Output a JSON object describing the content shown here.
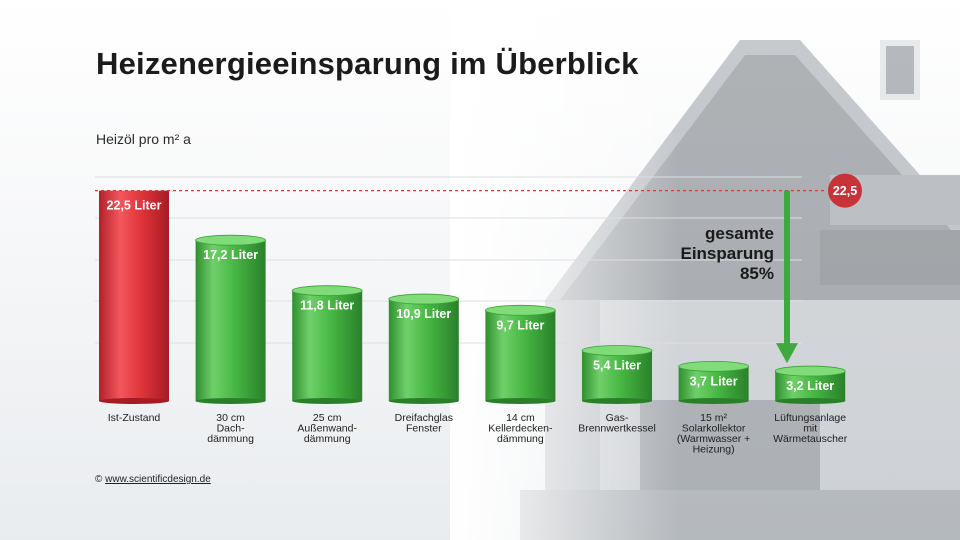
{
  "title": "Heizenergieeinsparung im Überblick",
  "unit_label": "Heizöl pro m² a",
  "savings_label": [
    "gesamte",
    "Einsparung",
    "85%"
  ],
  "copyright": {
    "symbol": "©",
    "link_text": "www.scientificdesign.de"
  },
  "colors": {
    "baseline": "#e0353b",
    "measures": "#3fae3f",
    "reference_line": "#d93a3a",
    "arrow": "#3fa83f"
  },
  "chart_data": {
    "type": "bar",
    "title": "Heizenergieeinsparung im Überblick",
    "ylabel": "Heizöl pro m² a",
    "xlabel": "",
    "ylim": [
      0,
      25
    ],
    "grid": true,
    "categories": [
      [
        "Ist-Zustand"
      ],
      [
        "30 cm",
        "Dach-",
        "dämmung"
      ],
      [
        "25 cm",
        "Außenwand-",
        "dämmung"
      ],
      [
        "Dreifachglas",
        "Fenster"
      ],
      [
        "14 cm",
        "Kellerdecken-",
        "dämmung"
      ],
      [
        "Gas-",
        "Brennwertkessel"
      ],
      [
        "15 m²",
        "Solarkollektor",
        "(Warmwasser +",
        "Heizung)"
      ],
      [
        "Lüftungsanlage",
        "mit",
        "Wärmetauscher"
      ]
    ],
    "values": [
      22.5,
      17.2,
      11.8,
      10.9,
      9.7,
      5.4,
      3.7,
      3.2
    ],
    "value_labels": [
      "22,5 Liter",
      "17,2 Liter",
      "11,8 Liter",
      "10,9 Liter",
      "9,7 Liter",
      "5,4 Liter",
      "3,7 Liter",
      "3,2 Liter"
    ],
    "reference": {
      "value": 22.5,
      "label": "22,5"
    }
  }
}
